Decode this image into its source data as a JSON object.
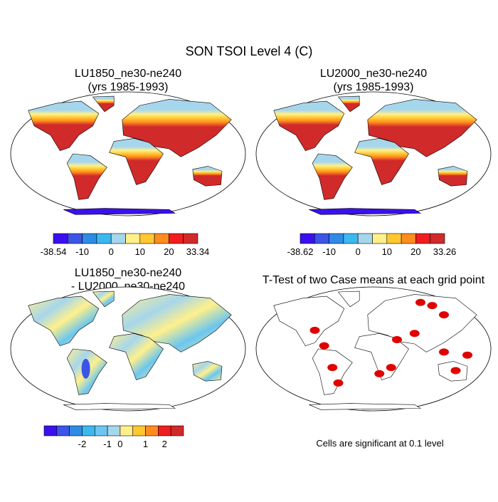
{
  "title": "SON TSOI Level 4 (C)",
  "panels": [
    {
      "title": [
        "LU1850_ne30-ne240",
        "(yrs 1985-1993)"
      ],
      "style": "absolute"
    },
    {
      "title": [
        "LU2000_ne30-ne240",
        "(yrs 1985-1993)"
      ],
      "style": "absolute"
    },
    {
      "title": [
        "LU1850_ne30-ne240",
        "- LU2000_ne30-ne240"
      ],
      "style": "difference"
    },
    {
      "title": [
        "T-Test of two Case means at each grid point"
      ],
      "style": "significance"
    }
  ],
  "colorbars": [
    {
      "colors": [
        "#3a10f0",
        "#3c55e6",
        "#2f8be6",
        "#3cb8f0",
        "#a6d6ec",
        "#fff08c",
        "#ffc832",
        "#ff8c1e",
        "#f01e1e",
        "#d02a2a"
      ],
      "labels": [
        -38.54,
        -10,
        0,
        10,
        20,
        33.34
      ]
    },
    {
      "colors": [
        "#3a10f0",
        "#3c55e6",
        "#2f8be6",
        "#3cb8f0",
        "#a6d6ec",
        "#fff08c",
        "#ffc832",
        "#ff8c1e",
        "#f01e1e",
        "#d02a2a"
      ],
      "labels": [
        -38.62,
        -10,
        0,
        10,
        20,
        33.26
      ]
    },
    {
      "colors": [
        "#3a10f0",
        "#3c55e6",
        "#2f8be6",
        "#3cb8f0",
        "#6cc6f0",
        "#a6d6ec",
        "#fff08c",
        "#ffc832",
        "#ff8c1e",
        "#f01e1e",
        "#d02a2a"
      ],
      "labels": [
        -2,
        -1,
        0,
        1,
        2
      ]
    }
  ],
  "note": "Cells are significant at 0.1 level"
}
